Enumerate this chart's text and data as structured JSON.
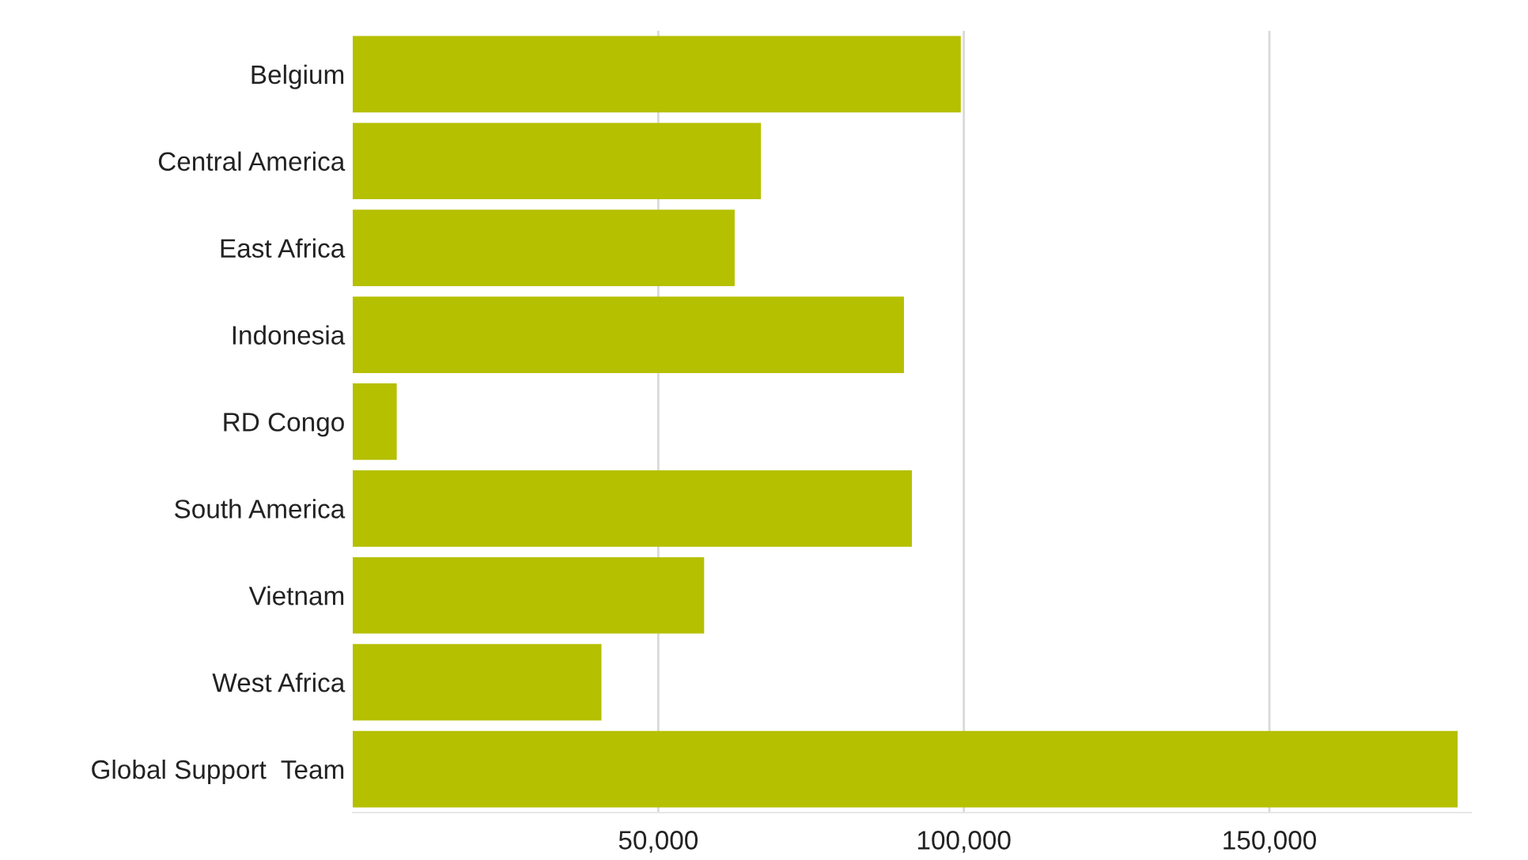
{
  "chart_data": {
    "type": "bar",
    "orientation": "horizontal",
    "categories": [
      "Belgium",
      "Central America",
      "East Africa",
      "Indonesia",
      "RD Congo",
      "South America",
      "Vietnam",
      "West Africa",
      "Global Support  Team"
    ],
    "values": [
      99500,
      66800,
      62500,
      90200,
      7200,
      91500,
      57500,
      40700,
      180800
    ],
    "color": "#b5c000",
    "xlim": [
      0,
      183000
    ],
    "xticks": [
      {
        "value": 50000,
        "label": "50,000"
      },
      {
        "value": 100000,
        "label": "100,000"
      },
      {
        "value": 150000,
        "label": "150,000"
      }
    ],
    "grid": "x"
  }
}
